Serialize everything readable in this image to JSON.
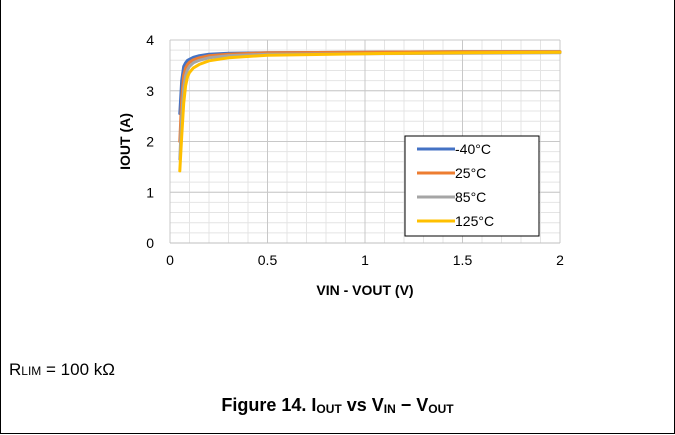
{
  "chart_data": {
    "type": "line",
    "xlabel": "VIN - VOUT (V)",
    "ylabel": "IOUT (A)",
    "xlim": [
      0,
      2
    ],
    "ylim": [
      0,
      4
    ],
    "xticks": [
      "0",
      "0.5",
      "1",
      "1.5",
      "2"
    ],
    "yticks": [
      "0",
      "1",
      "2",
      "3",
      "4"
    ],
    "grid": true,
    "legend_position": "right",
    "series": [
      {
        "name": "-40°C",
        "color": "#4472C4",
        "x": [
          0.05,
          0.06,
          0.07,
          0.08,
          0.09,
          0.1,
          0.12,
          0.15,
          0.2,
          0.3,
          0.5,
          1.0,
          1.5,
          2.0
        ],
        "y": [
          2.55,
          3.2,
          3.48,
          3.55,
          3.6,
          3.62,
          3.66,
          3.69,
          3.72,
          3.74,
          3.75,
          3.76,
          3.77,
          3.77
        ]
      },
      {
        "name": "25°C",
        "color": "#ED7D31",
        "x": [
          0.05,
          0.06,
          0.07,
          0.08,
          0.09,
          0.1,
          0.12,
          0.15,
          0.2,
          0.3,
          0.5,
          1.0,
          1.5,
          2.0
        ],
        "y": [
          2.0,
          2.85,
          3.3,
          3.45,
          3.52,
          3.56,
          3.61,
          3.65,
          3.69,
          3.72,
          3.75,
          3.76,
          3.77,
          3.77
        ]
      },
      {
        "name": "85°C",
        "color": "#A5A5A5",
        "x": [
          0.05,
          0.06,
          0.07,
          0.08,
          0.09,
          0.1,
          0.12,
          0.15,
          0.2,
          0.3,
          0.5,
          1.0,
          1.5,
          2.0
        ],
        "y": [
          1.65,
          2.5,
          3.05,
          3.3,
          3.42,
          3.48,
          3.55,
          3.6,
          3.65,
          3.69,
          3.72,
          3.73,
          3.74,
          3.75
        ]
      },
      {
        "name": "125°C",
        "color": "#FFC000",
        "x": [
          0.05,
          0.06,
          0.07,
          0.08,
          0.09,
          0.1,
          0.12,
          0.15,
          0.2,
          0.3,
          0.5,
          1.0,
          1.5,
          2.0
        ],
        "y": [
          1.42,
          2.1,
          2.75,
          3.1,
          3.28,
          3.36,
          3.45,
          3.52,
          3.59,
          3.65,
          3.7,
          3.73,
          3.75,
          3.76
        ]
      }
    ]
  },
  "condition": {
    "main": "R",
    "sub": "LIM",
    "rest": " = 100 kΩ"
  },
  "caption": {
    "prefix": "Figure 14. I",
    "sub1": "OUT",
    "mid1": " vs V",
    "sub2": "IN",
    "mid2": " − V",
    "sub3": "OUT"
  }
}
